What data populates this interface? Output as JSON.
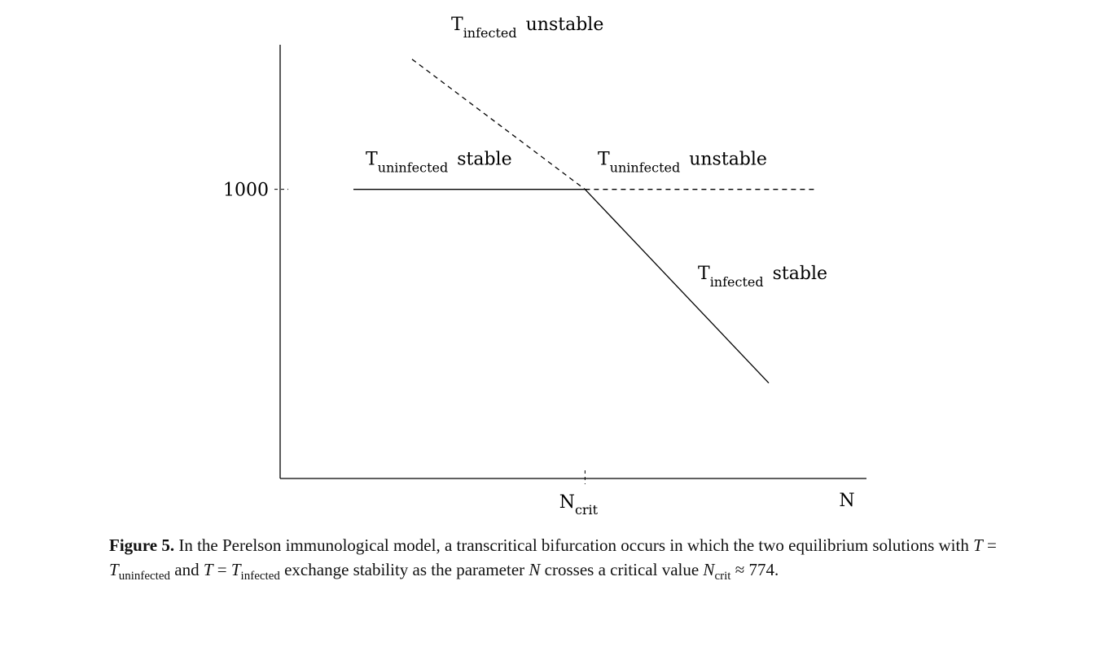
{
  "chart_data": {
    "type": "line",
    "xlabel": "N",
    "ylabel": "",
    "x_ticks": [
      {
        "value": 774,
        "label": "N",
        "label_sub": "crit"
      }
    ],
    "y_ticks": [
      {
        "value": 1000,
        "label": "1000"
      }
    ],
    "xlim": [
      150,
      1350
    ],
    "ylim": [
      0,
      1500
    ],
    "grid": false,
    "series": [
      {
        "name": "T_uninfected stable",
        "style": "solid",
        "x": [
          300,
          774
        ],
        "y": [
          1000,
          1000
        ]
      },
      {
        "name": "T_uninfected unstable",
        "style": "dashed",
        "x": [
          774,
          1250
        ],
        "y": [
          1000,
          1000
        ]
      },
      {
        "name": "T_infected unstable",
        "style": "dashed",
        "x": [
          420,
          774
        ],
        "y": [
          1450,
          1000
        ]
      },
      {
        "name": "T_infected stable",
        "style": "solid",
        "x": [
          774,
          1150
        ],
        "y": [
          1000,
          330
        ]
      }
    ],
    "annotations": [
      {
        "main": "T",
        "sub": "infected",
        "suffix": "unstable",
        "x": 500,
        "y": 1550
      },
      {
        "main": "T",
        "sub": "uninfected",
        "suffix": "stable",
        "x": 325,
        "y": 1085
      },
      {
        "main": "T",
        "sub": "uninfected",
        "suffix": "unstable",
        "x": 800,
        "y": 1085
      },
      {
        "main": "T",
        "sub": "infected",
        "suffix": "stable",
        "x": 1005,
        "y": 690
      }
    ]
  },
  "caption": {
    "figure_label": "Figure 5.",
    "part1": " In the Perelson immunological model, a transcritical bifurcation occurs in which the two equilibrium solutions with ",
    "eq1_lhs": "T",
    "eq1_op": " = ",
    "eq1_rhs": "T",
    "eq1_rhs_sub": "uninfected",
    "part2": " and ",
    "eq2_lhs": "T",
    "eq2_op": " = ",
    "eq2_rhs": "T",
    "eq2_rhs_sub": "infected",
    "part3": " exchange stability as the parameter ",
    "param": "N",
    "part4": " crosses a critical value ",
    "ncrit": "N",
    "ncrit_sub": "crit",
    "approx": " ≈ 774."
  }
}
